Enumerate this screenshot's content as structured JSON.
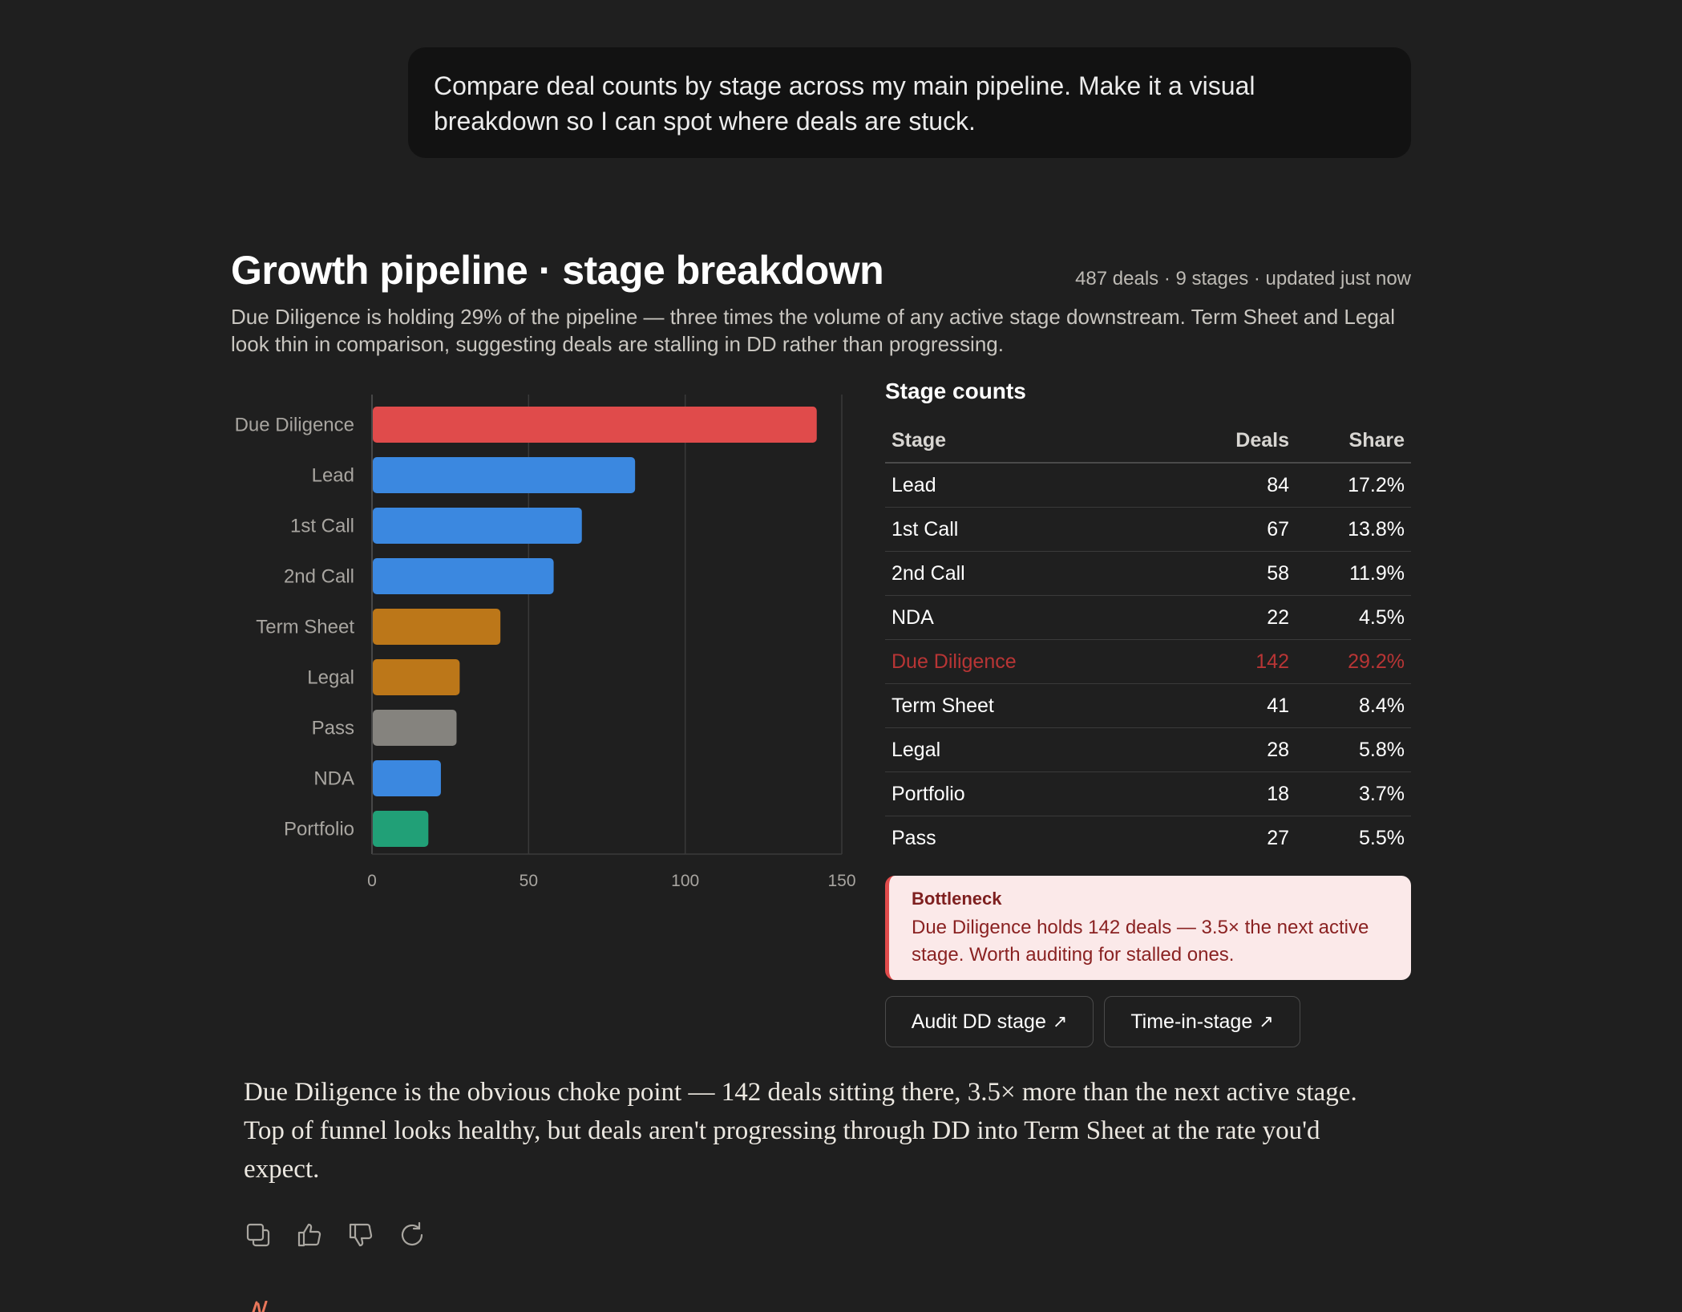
{
  "user_message": "Compare deal counts by stage across my main pipeline. Make it a visual breakdown so I can spot where deals are stuck.",
  "card": {
    "title": "Growth pipeline · stage breakdown",
    "meta": "487 deals · 9 stages · updated just now",
    "subtitle": "Due Diligence is holding 29% of the pipeline — three times the volume of any active stage downstream. Term Sheet and Legal look thin in comparison, suggesting deals are stalling in DD rather than progressing."
  },
  "chart_data": {
    "type": "bar",
    "orientation": "horizontal",
    "categories": [
      "Due Diligence",
      "Lead",
      "1st Call",
      "2nd Call",
      "Term Sheet",
      "Legal",
      "Pass",
      "NDA",
      "Portfolio"
    ],
    "values": [
      142,
      84,
      67,
      58,
      41,
      28,
      27,
      22,
      18
    ],
    "colors": [
      "#e04b4b",
      "#3b88e0",
      "#3b88e0",
      "#3b88e0",
      "#bc7719",
      "#bc7719",
      "#85837e",
      "#3b88e0",
      "#21a077"
    ],
    "xlim": [
      0,
      150
    ],
    "xticks": [
      0,
      50,
      100,
      150
    ],
    "grid": true,
    "title": "",
    "xlabel": "",
    "ylabel": ""
  },
  "table": {
    "title": "Stage counts",
    "headers": {
      "stage": "Stage",
      "deals": "Deals",
      "share": "Share"
    },
    "rows": [
      {
        "stage": "Lead",
        "deals": "84",
        "share": "17.2%"
      },
      {
        "stage": "1st Call",
        "deals": "67",
        "share": "13.8%"
      },
      {
        "stage": "2nd Call",
        "deals": "58",
        "share": "11.9%"
      },
      {
        "stage": "NDA",
        "deals": "22",
        "share": "4.5%"
      },
      {
        "stage": "Due Diligence",
        "deals": "142",
        "share": "29.2%"
      },
      {
        "stage": "Term Sheet",
        "deals": "41",
        "share": "8.4%"
      },
      {
        "stage": "Legal",
        "deals": "28",
        "share": "5.8%"
      },
      {
        "stage": "Portfolio",
        "deals": "18",
        "share": "3.7%"
      },
      {
        "stage": "Pass",
        "deals": "27",
        "share": "5.5%"
      }
    ],
    "highlight_color": "#b83535"
  },
  "callout": {
    "title": "Bottleneck",
    "body": "Due Diligence holds 142 deals — 3.5× the next active stage. Worth auditing for stalled ones."
  },
  "buttons": {
    "audit_label": "Audit DD stage",
    "time_label": "Time-in-stage",
    "arrow": "↗"
  },
  "answer": "Due Diligence is the obvious choke point — 142 deals sitting there, 3.5× more than the next active stage. Top of funnel looks healthy, but deals aren't progressing through DD into Term Sheet at the rate you'd expect.",
  "action_icons": [
    "copy-icon",
    "thumbs-up-icon",
    "thumbs-down-icon",
    "retry-icon"
  ],
  "accent": "#e8765a"
}
